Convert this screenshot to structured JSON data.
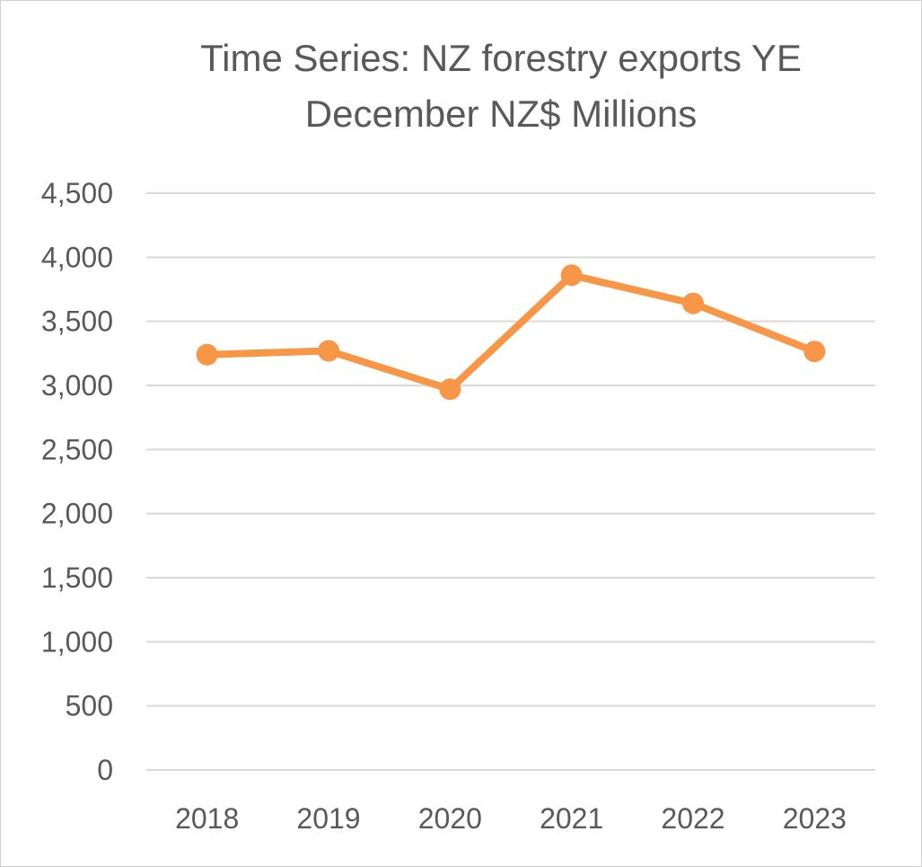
{
  "chart_data": {
    "type": "line",
    "title": "Time Series: NZ forestry exports YE December NZ$ Millions",
    "title_lines": [
      "Time Series: NZ forestry exports YE",
      "December NZ$ Millions"
    ],
    "xlabel": "",
    "ylabel": "",
    "categories": [
      "2018",
      "2019",
      "2020",
      "2021",
      "2022",
      "2023"
    ],
    "series": [
      {
        "values": [
          3240,
          3270,
          2970,
          3860,
          3640,
          3265
        ],
        "color": "#F79646"
      }
    ],
    "ylim": [
      0,
      4500
    ],
    "yticks": [
      0,
      500,
      1000,
      1500,
      2000,
      2500,
      3000,
      3500,
      4000,
      4500
    ],
    "ytick_labels": [
      "0",
      "500",
      "1,000",
      "1,500",
      "2,000",
      "2,500",
      "3,000",
      "3,500",
      "4,000",
      "4,500"
    ],
    "grid": true,
    "legend": "none",
    "colors": {
      "gridline": "#d9d9d9",
      "text": "#595959"
    }
  }
}
